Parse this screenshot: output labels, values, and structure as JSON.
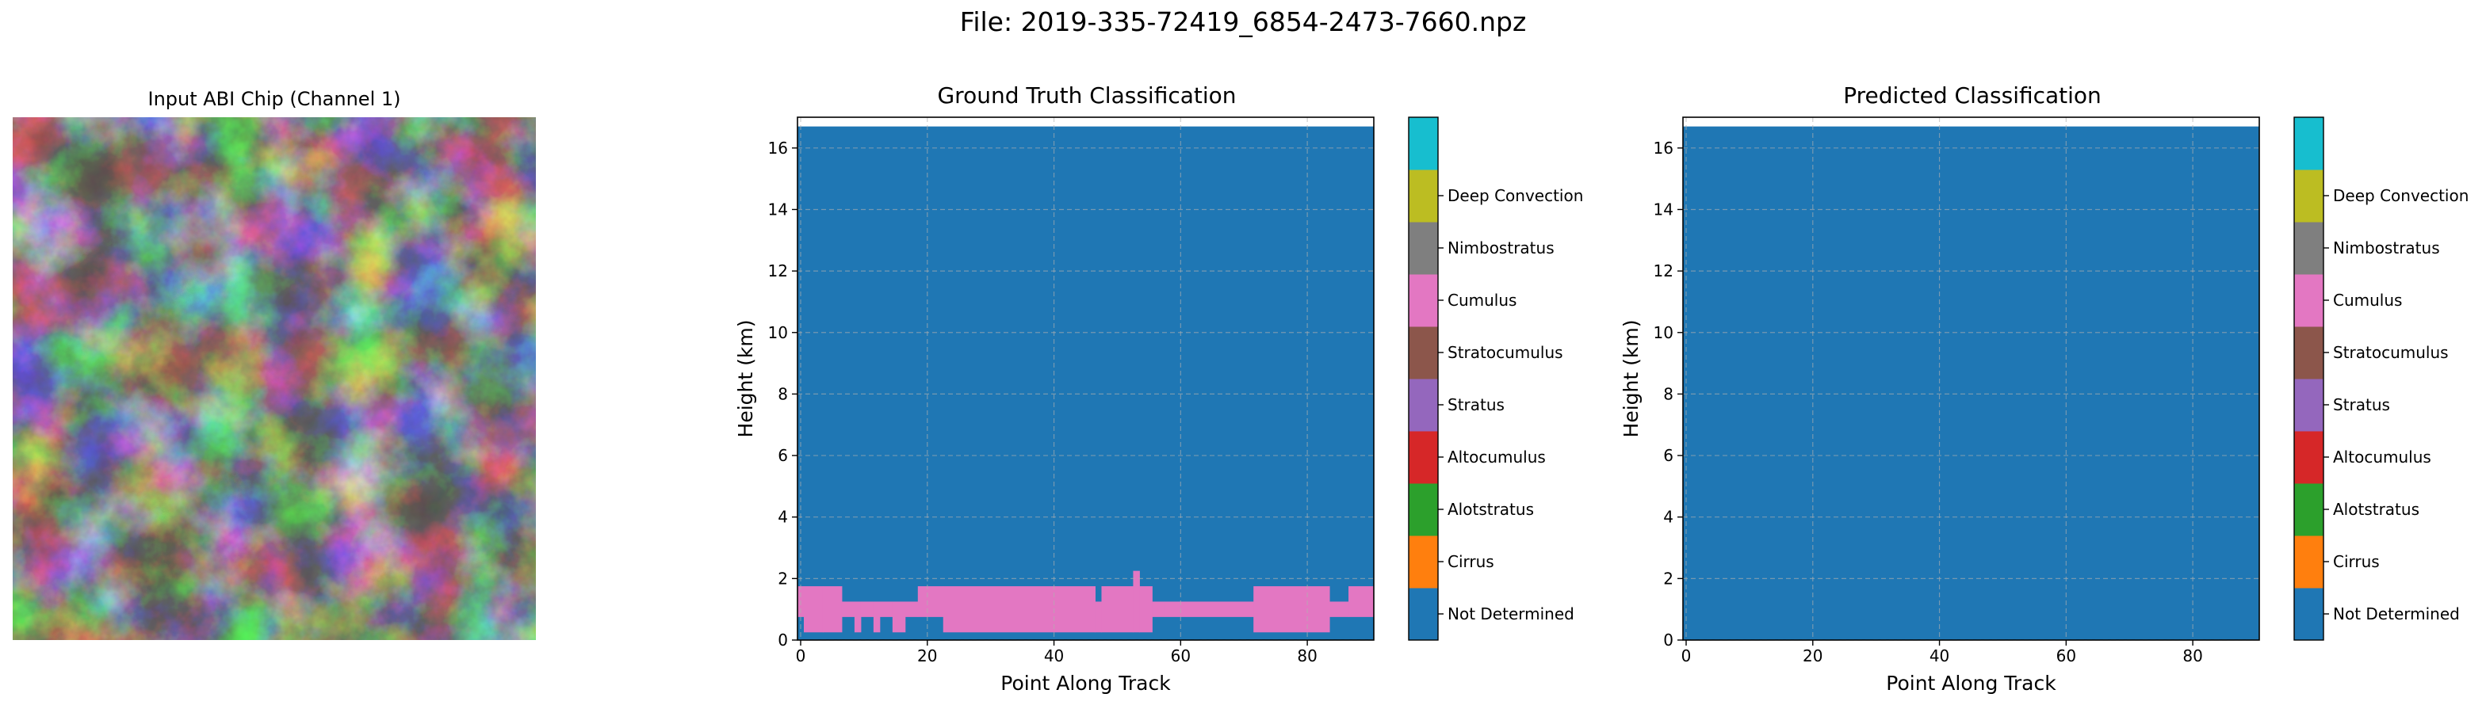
{
  "figure": {
    "suptitle": "File: 2019-335-72419_6854-2473-7660.npz"
  },
  "chart_data": [
    {
      "type": "heatmap",
      "title": "Input ABI Chip (Channel 1)",
      "colormap": "gray",
      "description_values": "grayscale satellite reflectance chip; no axes shown"
    },
    {
      "type": "heatmap",
      "title": "Ground Truth Classification",
      "xlabel": "Point Along Track",
      "ylabel": "Height (km)",
      "xlim": [
        -0.5,
        90.5
      ],
      "ylim": [
        0,
        17
      ],
      "xticks": [
        0,
        20,
        40,
        60,
        80
      ],
      "yticks": [
        0,
        2,
        4,
        6,
        8,
        10,
        12,
        14,
        16
      ],
      "grid": true,
      "background_class": "Not Determined",
      "top_of_data_km": 16.7,
      "stratocumulus_columns": [
        {
          "x0": 0,
          "x1": 1,
          "bottom": 0.75,
          "top": 1.75
        },
        {
          "x0": 1,
          "x1": 4,
          "bottom": 0.25,
          "top": 1.75
        },
        {
          "x0": 4,
          "x1": 7,
          "bottom": 0.25,
          "top": 1.75
        },
        {
          "x0": 7,
          "x1": 9,
          "bottom": 0.75,
          "top": 1.25
        },
        {
          "x0": 9,
          "x1": 10,
          "bottom": 0.25,
          "top": 1.25
        },
        {
          "x0": 10,
          "x1": 12,
          "bottom": 0.75,
          "top": 1.25
        },
        {
          "x0": 12,
          "x1": 13,
          "bottom": 0.25,
          "top": 1.25
        },
        {
          "x0": 13,
          "x1": 15,
          "bottom": 0.75,
          "top": 1.25
        },
        {
          "x0": 15,
          "x1": 17,
          "bottom": 0.25,
          "top": 1.25
        },
        {
          "x0": 17,
          "x1": 19,
          "bottom": 0.75,
          "top": 1.25
        },
        {
          "x0": 19,
          "x1": 23,
          "bottom": 0.75,
          "top": 1.75
        },
        {
          "x0": 23,
          "x1": 47,
          "bottom": 0.25,
          "top": 1.75
        },
        {
          "x0": 47,
          "x1": 48,
          "bottom": 0.25,
          "top": 1.25
        },
        {
          "x0": 48,
          "x1": 53,
          "bottom": 0.25,
          "top": 1.75
        },
        {
          "x0": 53,
          "x1": 54,
          "bottom": 0.25,
          "top": 2.25
        },
        {
          "x0": 54,
          "x1": 56,
          "bottom": 0.25,
          "top": 1.75
        },
        {
          "x0": 56,
          "x1": 58,
          "bottom": 0.75,
          "top": 1.25
        },
        {
          "x0": 58,
          "x1": 72,
          "bottom": 0.75,
          "top": 1.25
        },
        {
          "x0": 72,
          "x1": 84,
          "bottom": 0.25,
          "top": 1.75
        },
        {
          "x0": 84,
          "x1": 87,
          "bottom": 0.75,
          "top": 1.25
        },
        {
          "x0": 87,
          "x1": 91,
          "bottom": 0.75,
          "top": 1.75
        }
      ],
      "colorbar": {
        "labels": [
          "Not Determined",
          "Cirrus",
          "Alotstratus",
          "Altocumulus",
          "Stratus",
          "Stratocumulus",
          "Cumulus",
          "Nimbostratus",
          "Deep Convection"
        ],
        "colors": [
          "#1f77b4",
          "#ff7f0e",
          "#2ca02c",
          "#d62728",
          "#9467bd",
          "#8c564b",
          "#e377c2",
          "#7f7f7f",
          "#bcbd22",
          "#17becf"
        ]
      }
    },
    {
      "type": "heatmap",
      "title": "Predicted Classification",
      "xlabel": "Point Along Track",
      "ylabel": "Height (km)",
      "xlim": [
        -0.5,
        90.5
      ],
      "ylim": [
        0,
        17
      ],
      "xticks": [
        0,
        20,
        40,
        60,
        80
      ],
      "yticks": [
        0,
        2,
        4,
        6,
        8,
        10,
        12,
        14,
        16
      ],
      "grid": true,
      "background_class": "Not Determined",
      "top_of_data_km": 16.7,
      "colorbar": {
        "labels": [
          "Not Determined",
          "Cirrus",
          "Alotstratus",
          "Altocumulus",
          "Stratus",
          "Stratocumulus",
          "Cumulus",
          "Nimbostratus",
          "Deep Convection"
        ],
        "colors": [
          "#1f77b4",
          "#ff7f0e",
          "#2ca02c",
          "#d62728",
          "#9467bd",
          "#8c564b",
          "#e377c2",
          "#7f7f7f",
          "#bcbd22",
          "#17becf"
        ]
      }
    }
  ]
}
